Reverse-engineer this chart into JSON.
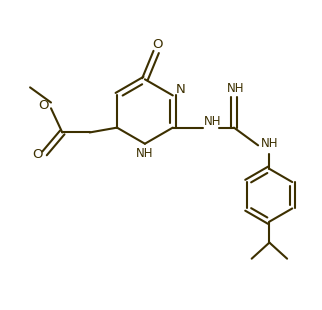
{
  "bg_color": "#ffffff",
  "line_color": "#3d3000",
  "line_width": 1.5,
  "font_size": 8.5,
  "figsize": [
    3.22,
    3.1
  ],
  "dpi": 100,
  "xlim": [
    0,
    10
  ],
  "ylim": [
    0,
    9.6
  ]
}
